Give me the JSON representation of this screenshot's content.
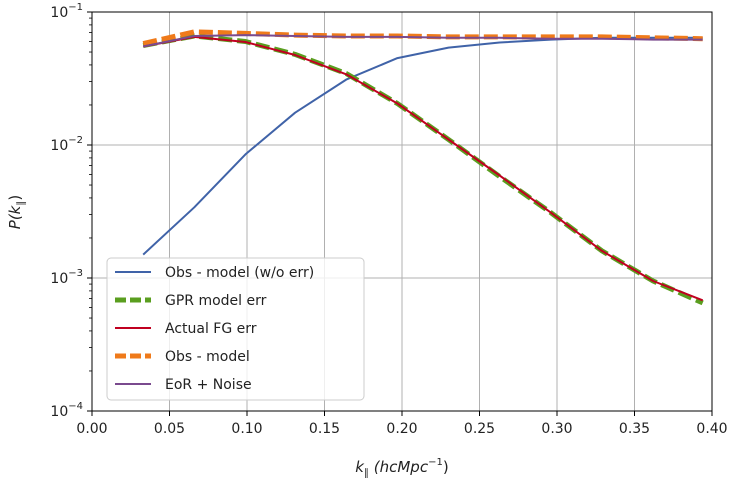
{
  "chart_data": {
    "type": "line",
    "xlabel": {
      "main": "k",
      "sub": "∥",
      "unit_pre": " (hcMpc",
      "unit_sup": "−1",
      "unit_post": ")"
    },
    "ylabel": {
      "main": "P(k",
      "sub": "∥",
      "post": ")"
    },
    "xlim": [
      0.0,
      0.4
    ],
    "ylim": [
      0.0001,
      0.1
    ],
    "yscale": "log",
    "grid": true,
    "legend_position": "lower-left",
    "x_ticks": [
      "0.00",
      "0.05",
      "0.10",
      "0.15",
      "0.20",
      "0.25",
      "0.30",
      "0.35",
      "0.40"
    ],
    "y_ticks": [
      {
        "base": "10",
        "exp": "−4"
      },
      {
        "base": "10",
        "exp": "−3"
      },
      {
        "base": "10",
        "exp": "−2"
      },
      {
        "base": "10",
        "exp": "−1"
      }
    ],
    "series": [
      {
        "name": "Obs - model (w/o err)",
        "color": "#4063a8",
        "style": "solid",
        "x": [
          0.033,
          0.066,
          0.099,
          0.131,
          0.164,
          0.197,
          0.23,
          0.263,
          0.296,
          0.329,
          0.362,
          0.394
        ],
        "y": [
          0.0015,
          0.0034,
          0.0085,
          0.0175,
          0.031,
          0.045,
          0.054,
          0.059,
          0.062,
          0.064,
          0.064,
          0.064
        ]
      },
      {
        "name": "GPR model err",
        "color": "#5a9e1f",
        "style": "dashed-thick",
        "x": [
          0.033,
          0.066,
          0.099,
          0.131,
          0.164,
          0.197,
          0.23,
          0.263,
          0.296,
          0.329,
          0.362,
          0.394
        ],
        "y": [
          0.056,
          0.066,
          0.06,
          0.048,
          0.0345,
          0.0205,
          0.011,
          0.0058,
          0.0031,
          0.0016,
          0.00095,
          0.00065
        ]
      },
      {
        "name": "Actual FG err",
        "color": "#c00020",
        "style": "solid",
        "x": [
          0.033,
          0.066,
          0.099,
          0.131,
          0.164,
          0.197,
          0.23,
          0.263,
          0.296,
          0.329,
          0.362,
          0.394
        ],
        "y": [
          0.055,
          0.065,
          0.0595,
          0.0475,
          0.034,
          0.0205,
          0.011,
          0.0059,
          0.0031,
          0.0016,
          0.00095,
          0.00068
        ]
      },
      {
        "name": "Obs - model",
        "color": "#ef7a1a",
        "style": "dashed-thick",
        "x": [
          0.033,
          0.066,
          0.099,
          0.131,
          0.164,
          0.197,
          0.23,
          0.263,
          0.296,
          0.329,
          0.362,
          0.394
        ],
        "y": [
          0.058,
          0.071,
          0.069,
          0.067,
          0.066,
          0.066,
          0.065,
          0.065,
          0.065,
          0.065,
          0.064,
          0.063
        ]
      },
      {
        "name": "EoR + Noise",
        "color": "#7a4a8e",
        "style": "solid",
        "x": [
          0.033,
          0.066,
          0.099,
          0.131,
          0.164,
          0.197,
          0.23,
          0.263,
          0.296,
          0.329,
          0.362,
          0.394
        ],
        "y": [
          0.055,
          0.066,
          0.067,
          0.066,
          0.065,
          0.065,
          0.064,
          0.064,
          0.063,
          0.063,
          0.062,
          0.062
        ]
      }
    ]
  }
}
